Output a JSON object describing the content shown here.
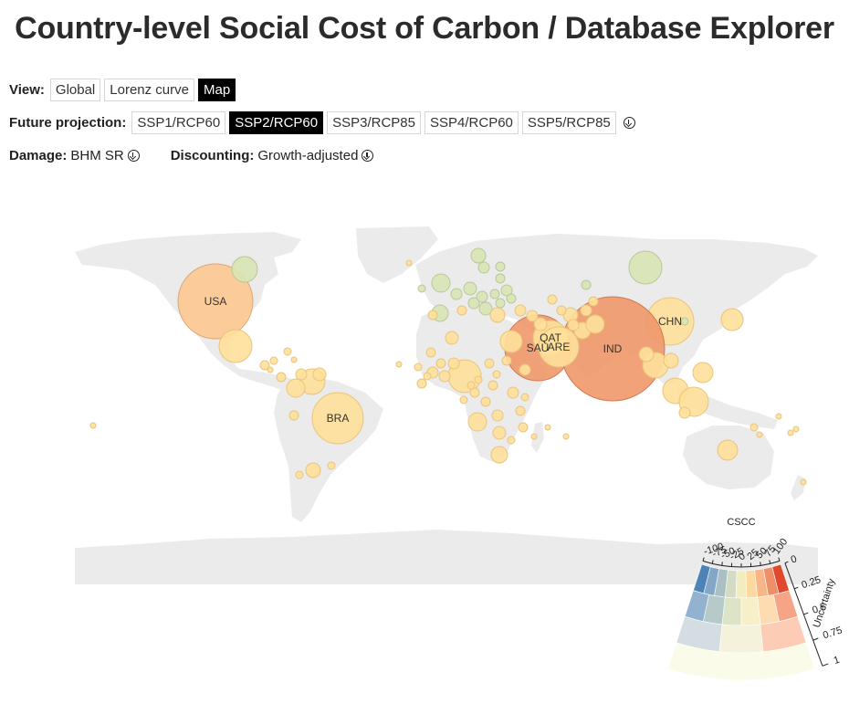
{
  "title": "Country-level Social Cost of Carbon / Database Explorer",
  "view": {
    "label": "View:",
    "options": [
      "Global",
      "Lorenz curve",
      "Map"
    ],
    "active": 2
  },
  "projection": {
    "label": "Future projection:",
    "options": [
      "SSP1/RCP60",
      "SSP2/RCP60",
      "SSP3/RCP85",
      "SSP4/RCP60",
      "SSP5/RCP85"
    ],
    "active": 1,
    "icon": "download-circle-icon"
  },
  "damage": {
    "label": "Damage:",
    "value": "BHM SR",
    "icon": "download-circle-icon"
  },
  "discounting": {
    "label": "Discounting:",
    "value": "Growth-adjusted",
    "icon": "download-circle-icon"
  },
  "map": {
    "bubble_labels": [
      "USA",
      "BRA",
      "SAU",
      "QAT",
      "ARE",
      "IND",
      "CHN"
    ],
    "colors": {
      "land": "#ebebeb",
      "green": "#d9e4b5",
      "yellow": "#fee09a",
      "peach": "#fdc990",
      "orange": "#f0986a",
      "red": "#e9684c"
    }
  },
  "legend": {
    "title": "CSCC",
    "x_ticks": [
      "-100",
      "-75",
      "-50",
      "-25",
      "0",
      "25",
      "50",
      "75",
      "100"
    ],
    "y_title": "Uncertainty",
    "y_ticks": [
      "0",
      "0.25",
      "0.5",
      "0.75",
      "1"
    ],
    "colors": [
      [
        "#4e83b8",
        "#84a7c6",
        "#a9bfc4",
        "#d3dcc2",
        "#f2ecbf",
        "#fbd99f",
        "#f7b687",
        "#ef8f69",
        "#e0492e"
      ],
      [
        "#93b2cf",
        "#b5cac9",
        "#dce3c6",
        "#f6efc8",
        "#fcdcb0",
        "#f6a486"
      ],
      [
        "#d4dee2",
        "#f4f2da",
        "#fccdb4"
      ],
      [
        "#fbfbea"
      ]
    ]
  }
}
